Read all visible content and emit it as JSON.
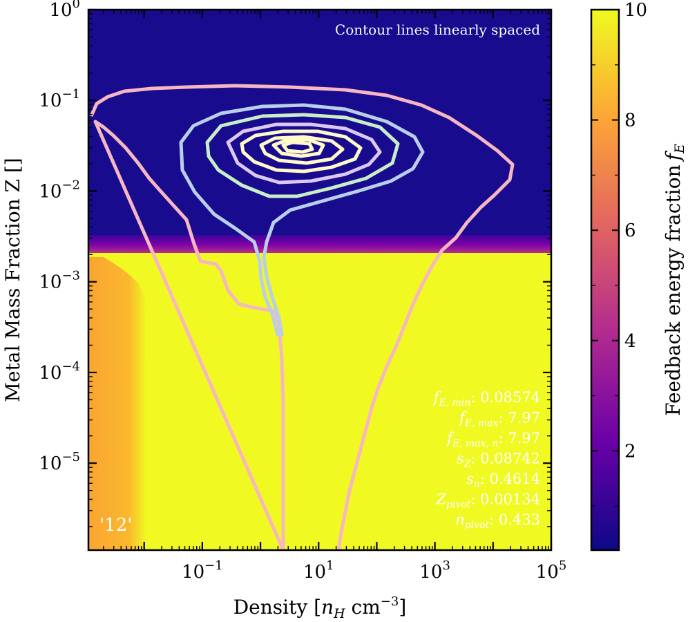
{
  "chart_data": {
    "type": "heatmap",
    "xlabel_main": "Density [",
    "xlabel_sym": "n",
    "xlabel_sub": "H",
    "xlabel_unit": " cm",
    "xlabel_exp": "−3",
    "xlabel_close": "]",
    "ylabel": "Metal Mass Fraction Z []",
    "colorbar_label": "Feedback energy fraction",
    "colorbar_label_sym": "f",
    "colorbar_label_sub": "E",
    "x_scale": "log",
    "y_scale": "log",
    "xlim": [
      0.0011,
      100000
    ],
    "ylim": [
      1.1e-06,
      1
    ],
    "clim": [
      0.2,
      10
    ],
    "colormap": "plasma",
    "x_ticks": [
      {
        "value": 0.1,
        "base": "10",
        "exp": "−1"
      },
      {
        "value": 10,
        "base": "10",
        "exp": "1"
      },
      {
        "value": 1000,
        "base": "10",
        "exp": "3"
      },
      {
        "value": 100000,
        "base": "10",
        "exp": "5"
      }
    ],
    "y_ticks": [
      {
        "value": 1,
        "base": "10",
        "exp": "0"
      },
      {
        "value": 0.1,
        "base": "10",
        "exp": "−1"
      },
      {
        "value": 0.01,
        "base": "10",
        "exp": "−2"
      },
      {
        "value": 0.001,
        "base": "10",
        "exp": "−3"
      },
      {
        "value": 0.0001,
        "base": "10",
        "exp": "−4"
      },
      {
        "value": 1e-05,
        "base": "10",
        "exp": "−5"
      }
    ],
    "colorbar_ticks": [
      "2",
      "4",
      "6",
      "8",
      "10"
    ],
    "colorbar_tick_values": [
      2,
      4,
      6,
      8,
      10
    ],
    "colormap_stops": [
      "#0d0887",
      "#6a00a8",
      "#b12a90",
      "#e16462",
      "#fca636",
      "#f0f921"
    ],
    "metal_transition_Z": 0.00134,
    "density_transition_n": 0.01,
    "model": {
      "f_E_min": 0.08574,
      "f_E_max": 7.97,
      "f_E_max_n": 7.97,
      "s_Z": 0.08742,
      "s_n": 0.4614,
      "Z_pivot": 0.00134,
      "n_pivot": 0.433
    },
    "contour_colors": [
      "#f7b7c2",
      "#b9cfe8",
      "#c8efc8",
      "#dcc8f0",
      "#fffac8"
    ]
  },
  "annotations": {
    "contour_note": "Contour lines linearly spaced",
    "run_label": "'12'",
    "params": [
      {
        "sym": "f",
        "sub": "E, min",
        "value": ": 0.08574"
      },
      {
        "sym": "f",
        "sub": "E, max",
        "value": ": 7.97"
      },
      {
        "sym": "f",
        "sub": "E, max, n",
        "value": ": 7.97"
      },
      {
        "sym": "s",
        "sub": "Z",
        "value": ": 0.08742"
      },
      {
        "sym": "s",
        "sub": "n",
        "value": ": 0.4614"
      },
      {
        "sym": "Z",
        "sub": "pivot",
        "value": ": 0.00134"
      },
      {
        "sym": "n",
        "sub": "pivot",
        "value": ": 0.433"
      }
    ]
  }
}
